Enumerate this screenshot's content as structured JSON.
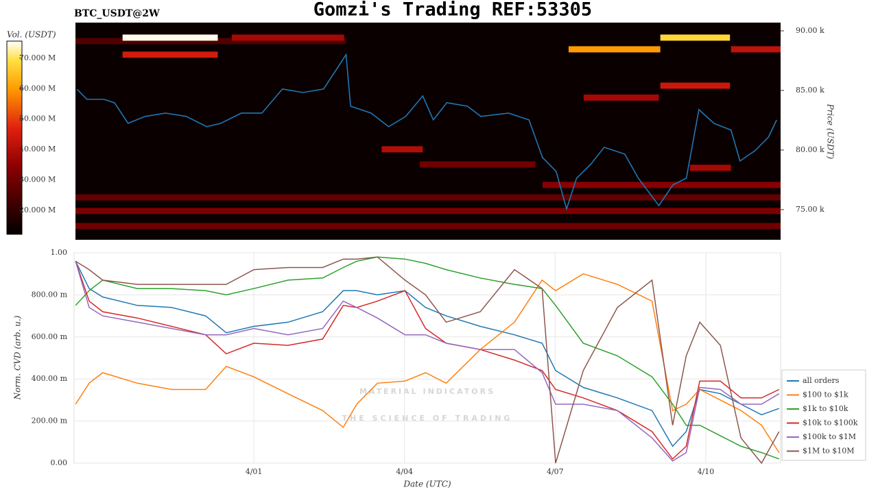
{
  "chart_data": [
    {
      "type": "heatmap",
      "title": "Gomzi's Trading REF:53305",
      "subtitle": "BTC_USDT@2W",
      "colorbar_label": "Vol. (USDT)",
      "ylabel": "Price (USDT)",
      "xlim": [
        -3.58,
        10.49
      ],
      "ylim": [
        72470,
        90690
      ],
      "yticks": [
        {
          "value": 75000,
          "label": "75.00 k"
        },
        {
          "value": 80000,
          "label": "80.00 k"
        },
        {
          "value": 85000,
          "label": "85.00 k"
        },
        {
          "value": 90000,
          "label": "90.00 k"
        }
      ],
      "clim": [
        12100000,
        75600000
      ],
      "cticks": [
        {
          "value": 20000000,
          "label": "20.000 M"
        },
        {
          "value": 30000000,
          "label": "30.000 M"
        },
        {
          "value": 40000000,
          "label": "40.000 M"
        },
        {
          "value": 50000000,
          "label": "50.000 M"
        },
        {
          "value": 60000000,
          "label": "60.000 M"
        },
        {
          "value": 70000000,
          "label": "70.000 M"
        }
      ],
      "bands": [
        {
          "x0": -3.58,
          "x1": 1.82,
          "price": 89140,
          "volume": 25000000
        },
        {
          "x0": -2.64,
          "x1": -0.74,
          "price": 89430,
          "volume": 75000000
        },
        {
          "x0": -0.46,
          "x1": 1.78,
          "price": 89430,
          "volume": 38000000
        },
        {
          "x0": -2.64,
          "x1": -0.74,
          "price": 88000,
          "volume": 45000000
        },
        {
          "x0": 6.26,
          "x1": 8.09,
          "price": 88450,
          "volume": 60000000
        },
        {
          "x0": 8.09,
          "x1": 9.48,
          "price": 89430,
          "volume": 68000000
        },
        {
          "x0": 9.5,
          "x1": 10.49,
          "price": 88450,
          "volume": 42000000
        },
        {
          "x0": 8.09,
          "x1": 9.48,
          "price": 85400,
          "volume": 44000000
        },
        {
          "x0": 6.56,
          "x1": 8.06,
          "price": 84400,
          "volume": 38000000
        },
        {
          "x0": 2.53,
          "x1": 3.35,
          "price": 80060,
          "volume": 40000000
        },
        {
          "x0": 3.29,
          "x1": 5.6,
          "price": 78790,
          "volume": 30000000
        },
        {
          "x0": 8.68,
          "x1": 9.5,
          "price": 78510,
          "volume": 38000000
        },
        {
          "x0": 5.74,
          "x1": 10.49,
          "price": 77070,
          "volume": 34000000
        },
        {
          "x0": -3.58,
          "x1": 10.49,
          "price": 76030,
          "volume": 28000000
        },
        {
          "x0": -3.58,
          "x1": 10.49,
          "price": 74890,
          "volume": 32000000
        },
        {
          "x0": -3.58,
          "x1": 10.49,
          "price": 73620,
          "volume": 30000000
        }
      ],
      "price": {
        "color": "#1f77b4",
        "x": [
          -3.55,
          -3.35,
          -3.01,
          -2.8,
          -2.53,
          -2.19,
          -1.78,
          -1.37,
          -0.96,
          -0.68,
          -0.27,
          0.14,
          0.55,
          0.96,
          1.37,
          1.64,
          1.82,
          1.91,
          2.32,
          2.67,
          3.01,
          3.35,
          3.56,
          3.83,
          4.24,
          4.51,
          5.06,
          5.47,
          5.74,
          6.01,
          6.22,
          6.42,
          6.7,
          6.97,
          7.38,
          7.65,
          8.06,
          8.34,
          8.61,
          8.86,
          9.16,
          9.5,
          9.68,
          9.98,
          10.25,
          10.41
        ],
        "values": [
          85100,
          84250,
          84250,
          83960,
          82240,
          82820,
          83100,
          82820,
          81960,
          82240,
          83100,
          83100,
          85120,
          84830,
          85120,
          86840,
          88000,
          83680,
          83100,
          81960,
          82820,
          84540,
          82530,
          83970,
          83680,
          82820,
          83100,
          82530,
          79370,
          78220,
          75060,
          77640,
          78790,
          80230,
          79660,
          77640,
          75340,
          77070,
          77640,
          83390,
          82240,
          81670,
          79080,
          79950,
          81100,
          82530
        ]
      }
    },
    {
      "type": "line",
      "xlabel": "Date (UTC)",
      "ylabel": "Norm. CVD (arb. u.)",
      "grid": true,
      "xlim": [
        -3.58,
        10.49
      ],
      "ylim": [
        0,
        1
      ],
      "xticks": [
        {
          "value": 0,
          "label": "4/01"
        },
        {
          "value": 3,
          "label": "4/04"
        },
        {
          "value": 6,
          "label": "4/07"
        },
        {
          "value": 9,
          "label": "4/10"
        }
      ],
      "yticks": [
        {
          "value": 0,
          "label": "0.00"
        },
        {
          "value": 0.2,
          "label": "200.00 m"
        },
        {
          "value": 0.4,
          "label": "400.00 m"
        },
        {
          "value": 0.6,
          "label": "600.00 m"
        },
        {
          "value": 0.8,
          "label": "800.00 m"
        },
        {
          "value": 1,
          "label": "1.00"
        }
      ],
      "watermark": [
        "MATERIAL INDICATORS",
        "THE SCIENCE OF TRADING"
      ],
      "x": [
        -3.55,
        -3.28,
        -3.01,
        -2.32,
        -1.64,
        -0.96,
        -0.55,
        0,
        0.68,
        1.37,
        1.78,
        2.05,
        2.46,
        3.01,
        3.42,
        3.83,
        4.51,
        5.19,
        5.74,
        6.01,
        6.56,
        7.24,
        7.93,
        8.34,
        8.61,
        8.88,
        9.29,
        9.7,
        10.11,
        10.46
      ],
      "series": [
        {
          "name": "all orders",
          "color": "#1f77b4",
          "values": [
            0.96,
            0.83,
            0.79,
            0.75,
            0.74,
            0.7,
            0.62,
            0.65,
            0.67,
            0.72,
            0.82,
            0.82,
            0.8,
            0.82,
            0.74,
            0.7,
            0.65,
            0.61,
            0.57,
            0.44,
            0.36,
            0.31,
            0.25,
            0.08,
            0.15,
            0.35,
            0.33,
            0.28,
            0.23,
            0.26
          ]
        },
        {
          "name": "$100 to $1k",
          "color": "#ff7f0e",
          "values": [
            0.28,
            0.38,
            0.43,
            0.38,
            0.35,
            0.35,
            0.46,
            0.41,
            0.33,
            0.25,
            0.17,
            0.28,
            0.38,
            0.39,
            0.43,
            0.38,
            0.54,
            0.67,
            0.87,
            0.82,
            0.9,
            0.85,
            0.77,
            0.25,
            0.28,
            0.35,
            0.3,
            0.25,
            0.18,
            0.05
          ]
        },
        {
          "name": "$1k to $10k",
          "color": "#2ca02c",
          "values": [
            0.75,
            0.82,
            0.87,
            0.83,
            0.83,
            0.82,
            0.8,
            0.83,
            0.87,
            0.88,
            0.93,
            0.96,
            0.98,
            0.97,
            0.95,
            0.92,
            0.88,
            0.85,
            0.83,
            0.75,
            0.57,
            0.51,
            0.41,
            0.28,
            0.18,
            0.18,
            0.13,
            0.08,
            0.05,
            0.02
          ]
        },
        {
          "name": "$10k to $100k",
          "color": "#d62728",
          "values": [
            0.96,
            0.77,
            0.72,
            0.69,
            0.65,
            0.61,
            0.52,
            0.57,
            0.56,
            0.59,
            0.75,
            0.74,
            0.77,
            0.82,
            0.64,
            0.57,
            0.54,
            0.49,
            0.44,
            0.35,
            0.31,
            0.25,
            0.15,
            0.02,
            0.08,
            0.39,
            0.39,
            0.31,
            0.31,
            0.35
          ]
        },
        {
          "name": "$100k to $1M",
          "color": "#9467bd",
          "values": [
            0.96,
            0.74,
            0.7,
            0.67,
            0.64,
            0.61,
            0.61,
            0.64,
            0.61,
            0.64,
            0.77,
            0.74,
            0.69,
            0.61,
            0.61,
            0.57,
            0.54,
            0.54,
            0.43,
            0.28,
            0.28,
            0.25,
            0.12,
            0.01,
            0.05,
            0.36,
            0.35,
            0.28,
            0.28,
            0.33
          ]
        },
        {
          "name": "$1M to $10M",
          "color": "#8c564b",
          "values": [
            0.96,
            0.92,
            0.87,
            0.85,
            0.85,
            0.85,
            0.85,
            0.92,
            0.93,
            0.93,
            0.97,
            0.97,
            0.98,
            0.87,
            0.8,
            0.67,
            0.72,
            0.92,
            0.83,
            0,
            0.44,
            0.74,
            0.87,
            0.18,
            0.51,
            0.67,
            0.56,
            0.12,
            0,
            0.15
          ]
        }
      ]
    }
  ]
}
